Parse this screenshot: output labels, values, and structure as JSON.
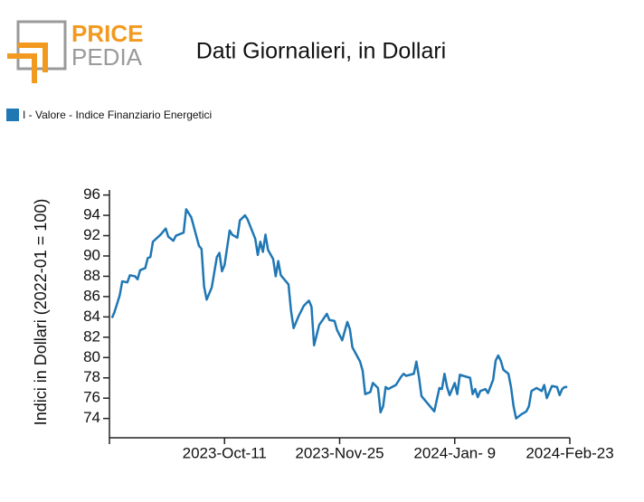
{
  "logo": {
    "top": "PRICE",
    "bottom": "PEDIA"
  },
  "chart_data": {
    "type": "line",
    "title": "Dati Giornalieri, in Dollari",
    "y_label": "Indici in Dollari (2022-01 = 100)",
    "legend": "top-left",
    "x": [
      "2023-08-28",
      "2023-08-29",
      "2023-08-31",
      "2023-09-01",
      "2023-09-03",
      "2023-09-04",
      "2023-09-06",
      "2023-09-07",
      "2023-09-08",
      "2023-09-10",
      "2023-09-11",
      "2023-09-12",
      "2023-09-13",
      "2023-09-16",
      "2023-09-18",
      "2023-09-19",
      "2023-09-21",
      "2023-09-22",
      "2023-09-25",
      "2023-09-26",
      "2023-09-28",
      "2023-10-01",
      "2023-10-02",
      "2023-10-03",
      "2023-10-04",
      "2023-10-06",
      "2023-10-08",
      "2023-10-09",
      "2023-10-10",
      "2023-10-11",
      "2023-10-13",
      "2023-10-14",
      "2023-10-16",
      "2023-10-17",
      "2023-10-19",
      "2023-10-20",
      "2023-10-23",
      "2023-10-24",
      "2023-10-25",
      "2023-10-26",
      "2023-10-27",
      "2023-10-28",
      "2023-10-30",
      "2023-10-31",
      "2023-11-01",
      "2023-11-02",
      "2023-11-05",
      "2023-11-06",
      "2023-11-07",
      "2023-11-09",
      "2023-11-11",
      "2023-11-13",
      "2023-11-14",
      "2023-11-15",
      "2023-11-17",
      "2023-11-20",
      "2023-11-21",
      "2023-11-23",
      "2023-11-24",
      "2023-11-26",
      "2023-11-28",
      "2023-11-29",
      "2023-11-30",
      "2023-12-03",
      "2023-12-04",
      "2023-12-05",
      "2023-12-07",
      "2023-12-08",
      "2023-12-10",
      "2023-12-11",
      "2023-12-12",
      "2023-12-13",
      "2023-12-14",
      "2023-12-17",
      "2023-12-19",
      "2023-12-20",
      "2023-12-21",
      "2023-12-24",
      "2023-12-25",
      "2023-12-26",
      "2023-12-27",
      "2023-12-29",
      "2024-01-01",
      "2024-01-03",
      "2024-01-04",
      "2024-01-05",
      "2024-01-06",
      "2024-01-07",
      "2024-01-09",
      "2024-01-10",
      "2024-01-11",
      "2024-01-15",
      "2024-01-16",
      "2024-01-17",
      "2024-01-18",
      "2024-01-19",
      "2024-01-21",
      "2024-01-22",
      "2024-01-24",
      "2024-01-25",
      "2024-01-26",
      "2024-01-27",
      "2024-01-28",
      "2024-01-30",
      "2024-01-31",
      "2024-02-01",
      "2024-02-02",
      "2024-02-04",
      "2024-02-06",
      "2024-02-07",
      "2024-02-08",
      "2024-02-10",
      "2024-02-12",
      "2024-02-13",
      "2024-02-14",
      "2024-02-16",
      "2024-02-18",
      "2024-02-19",
      "2024-02-20",
      "2024-02-21",
      "2024-02-22"
    ],
    "series": [
      {
        "name": "I - Valore - Indice Finanziario Energetici",
        "color": "#1f77b4",
        "values": [
          83.9,
          84.5,
          86.1,
          87.5,
          87.4,
          88.1,
          88.0,
          87.7,
          88.6,
          88.8,
          89.8,
          89.9,
          91.4,
          92.1,
          92.7,
          91.9,
          91.5,
          92.0,
          92.3,
          94.6,
          93.8,
          91.0,
          90.7,
          87.0,
          85.7,
          86.9,
          89.9,
          90.3,
          88.5,
          89.1,
          92.5,
          92.1,
          91.8,
          93.5,
          94.0,
          93.6,
          91.7,
          90.1,
          91.4,
          90.4,
          92.1,
          90.6,
          89.7,
          88.0,
          89.5,
          88.1,
          87.2,
          84.6,
          82.9,
          84.1,
          85.1,
          85.6,
          85.0,
          81.2,
          83.2,
          84.3,
          83.7,
          83.6,
          82.7,
          81.7,
          83.5,
          82.8,
          81.0,
          79.6,
          78.7,
          76.4,
          76.6,
          77.5,
          77.0,
          74.6,
          75.2,
          77.1,
          76.9,
          77.3,
          78.1,
          78.4,
          78.2,
          78.4,
          79.6,
          78.1,
          76.2,
          75.6,
          74.7,
          77.0,
          76.9,
          78.4,
          77.1,
          76.3,
          77.5,
          76.4,
          78.3,
          78.0,
          76.4,
          76.9,
          76.1,
          76.7,
          76.9,
          76.5,
          77.8,
          79.7,
          80.2,
          79.7,
          78.8,
          78.4,
          77.1,
          75.2,
          74.0,
          74.4,
          74.7,
          75.2,
          76.7,
          77.0,
          76.7,
          77.3,
          76.0,
          77.2,
          77.1,
          76.3,
          76.9,
          77.1,
          77.1
        ]
      }
    ],
    "xlim": [
      "2023-08-27",
      "2024-02-23"
    ],
    "xticks": [
      {
        "value": "2023-08-27",
        "label": null
      },
      {
        "value": "2023-10-11",
        "label": "2023-Oct-11"
      },
      {
        "value": "2023-11-25",
        "label": "2023-Nov-25"
      },
      {
        "value": "2024-01-09",
        "label": "2024-Jan- 9"
      },
      {
        "value": "2024-02-23",
        "label": "2024-Feb-23"
      }
    ],
    "ylim": [
      72.1,
      96.5
    ],
    "yticks": [
      74,
      76,
      78,
      80,
      82,
      84,
      86,
      88,
      90,
      92,
      94,
      96
    ],
    "grid": false
  }
}
